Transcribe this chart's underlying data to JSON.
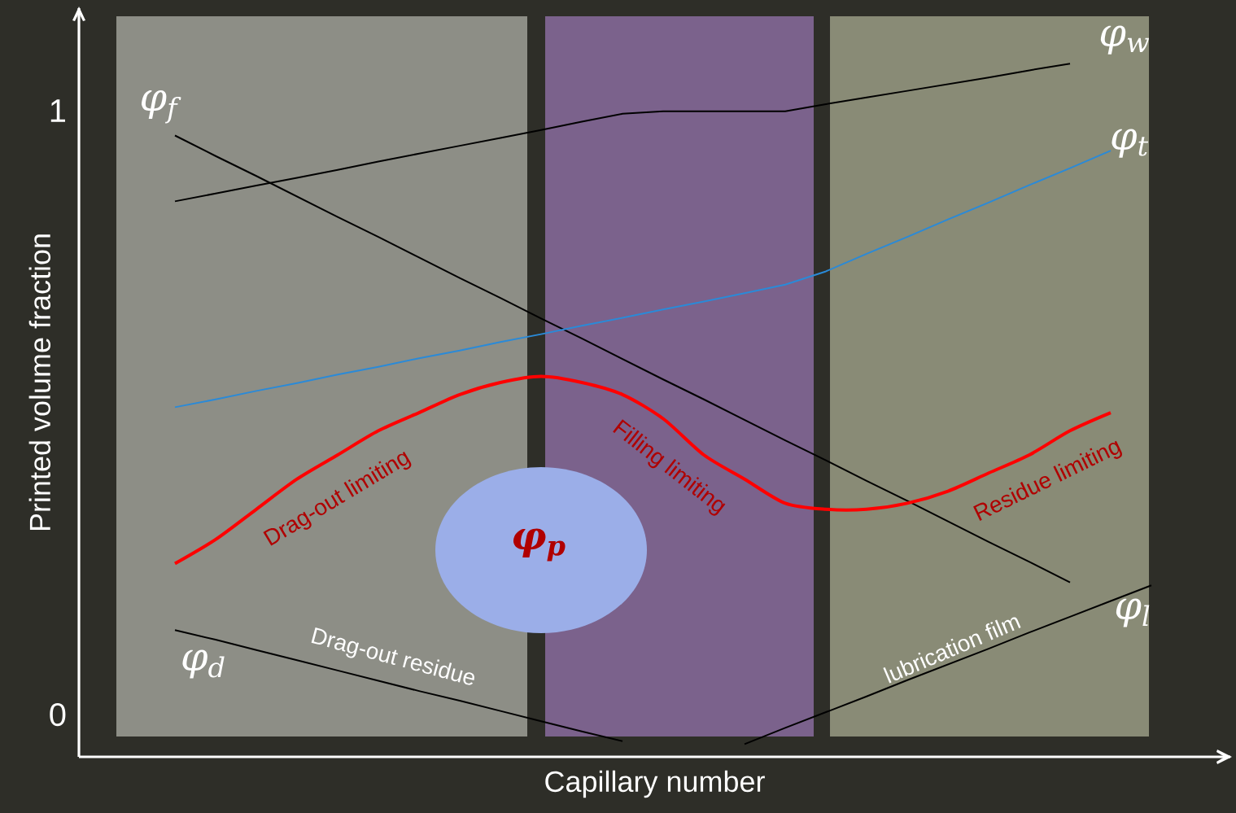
{
  "chart_data": {
    "type": "line",
    "xlabel": "Capillary number",
    "ylabel": "Printed volume fraction",
    "categories": [
      null,
      null,
      null,
      null,
      null,
      null,
      null,
      null,
      null,
      null,
      null,
      null,
      null,
      null,
      null,
      null,
      null,
      null,
      null,
      null,
      null,
      null,
      null,
      null,
      null
    ],
    "ylim": [
      -0.07,
      1.17
    ],
    "yticks": [
      0,
      1
    ],
    "tick_labels": "y",
    "grid": false,
    "series": [
      {
        "name": "φ$_{w}$",
        "color": "#000000",
        "values": [
          0.85,
          0.863,
          0.876,
          0.889,
          0.902,
          0.916,
          0.929,
          0.942,
          0.955,
          0.968,
          0.982,
          0.995,
          0.999,
          0.999,
          0.999,
          0.999,
          1.011,
          1.022,
          1.033,
          1.044,
          1.055,
          1.067,
          1.078,
          null,
          null
        ]
      },
      {
        "name": "φ$_{f}$",
        "color": "#000000",
        "values": [
          0.959,
          0.925,
          0.892,
          0.858,
          0.824,
          0.791,
          0.757,
          0.723,
          0.69,
          0.656,
          0.623,
          0.589,
          0.555,
          0.522,
          0.488,
          0.454,
          0.421,
          0.387,
          0.354,
          0.32,
          0.286,
          0.253,
          0.219,
          null,
          null
        ]
      },
      {
        "name": "φ$_{t}$",
        "color": "#2a8ad8",
        "values": [
          0.509,
          0.522,
          0.536,
          0.549,
          0.563,
          0.576,
          0.59,
          0.603,
          0.617,
          0.63,
          0.644,
          0.657,
          0.671,
          0.684,
          0.698,
          0.712,
          0.734,
          0.763,
          0.791,
          0.82,
          0.848,
          0.877,
          0.905,
          0.934,
          null
        ]
      },
      {
        "name": "φ$_{d}$",
        "color": "#000000",
        "values": [
          0.14,
          0.124,
          0.107,
          0.09,
          0.073,
          0.056,
          0.039,
          0.023,
          0.006,
          -0.011,
          -0.028,
          -0.044,
          null,
          null,
          null,
          null,
          null,
          null,
          null,
          null,
          null,
          null,
          null,
          null,
          null
        ]
      },
      {
        "name": "φ$_{l}$",
        "color": "#000000",
        "values": [
          null,
          null,
          null,
          null,
          null,
          null,
          null,
          null,
          null,
          null,
          null,
          null,
          null,
          null,
          -0.049,
          -0.022,
          0.004,
          0.03,
          0.057,
          0.083,
          0.109,
          0.136,
          0.162,
          0.188,
          0.214
        ]
      },
      {
        "color": "#ff0000",
        "values": [
          0.25,
          0.29,
          0.34,
          0.39,
          0.43,
          0.47,
          0.5,
          0.53,
          0.55,
          0.56,
          0.55,
          0.53,
          0.49,
          0.43,
          0.39,
          0.35,
          0.34,
          0.34,
          0.35,
          0.37,
          0.4,
          0.43,
          0.47,
          0.5,
          null
        ]
      }
    ],
    "annotations": [
      "Drag-out limiting",
      "Filling limiting",
      "Residue limiting",
      "Drag-out residue",
      "lubrication film",
      "φ$_{p}$"
    ]
  }
}
